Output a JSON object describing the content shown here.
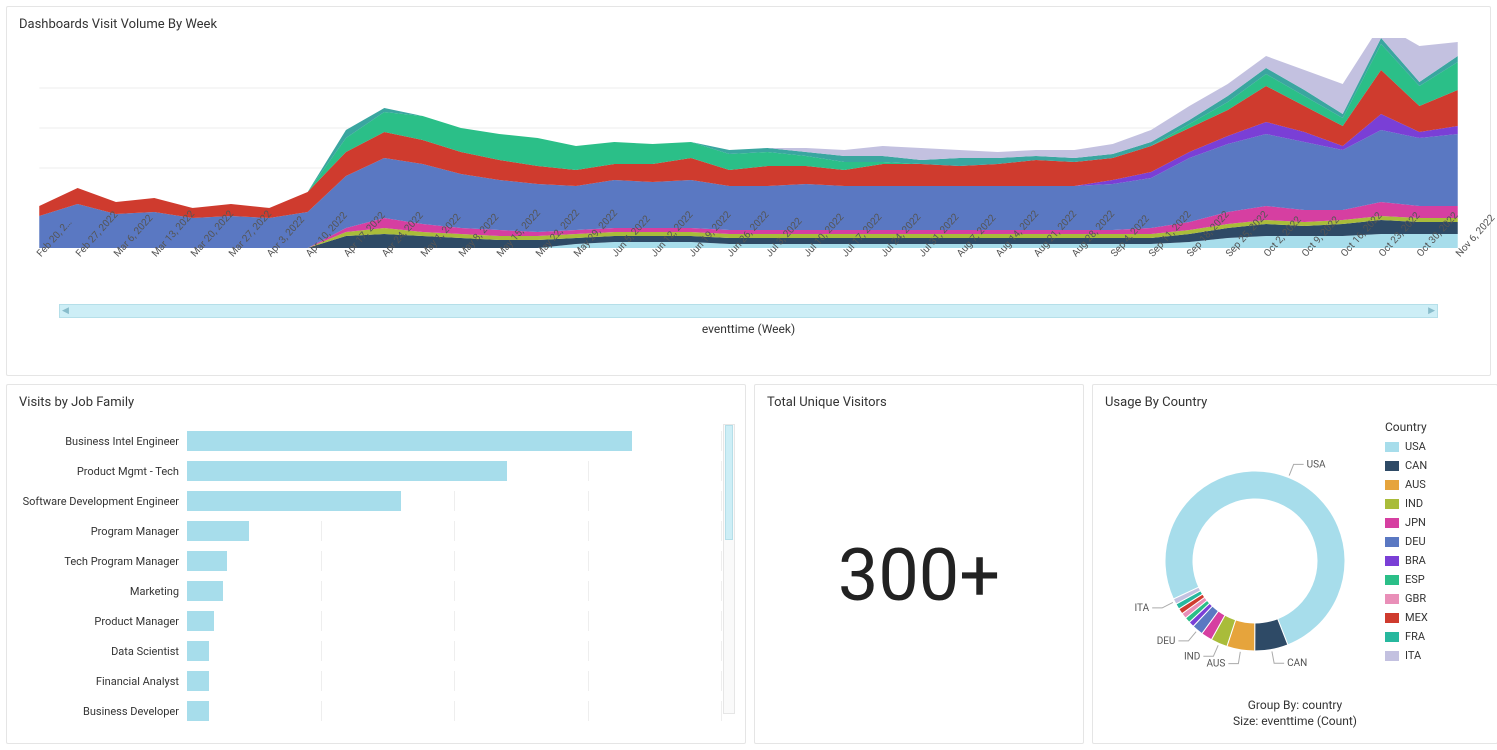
{
  "area_chart": {
    "title": "Dashboards Visit Volume By Week",
    "type": "area",
    "axis_title": "eventtime (Week)",
    "ylim": [
      0,
      100
    ],
    "grid_y": [
      20,
      40,
      60,
      80
    ],
    "grid_color": "#eeeeee",
    "background_color": "#ffffff",
    "x_labels": [
      "Feb 20, 2…",
      "Feb 27, 2022",
      "Mar 6, 2022",
      "Mar 13, 2022",
      "Mar 20, 2022",
      "Mar 27, 2022",
      "Apr 3, 2022",
      "Apr 10, 2022",
      "Apr 17, 2022",
      "Apr 24, 2022",
      "May 1, 2022",
      "May 8, 2022",
      "May 15, 2022",
      "May 22, 2022",
      "May 29, 2022",
      "Jun 5, 2022",
      "Jun 12, 2022",
      "Jun 19, 2022",
      "Jun 26, 2022",
      "Jul 3, 2022",
      "Jul 10, 2022",
      "Jul 17, 2022",
      "Jul 24, 2022",
      "Jul 31, 2022",
      "Aug 7, 2022",
      "Aug 14, 2022",
      "Aug 21, 2022",
      "Aug 28, 2022",
      "Sep 4, 2022",
      "Sep 11, 2022",
      "Sep 18, 2022",
      "Sep 25, 2022",
      "Oct 2, 2022",
      "Oct 9, 2022",
      "Oct 16, 2022",
      "Oct 23, 2022",
      "Oct 30, 2022",
      "Nov 6, 2022"
    ],
    "series": [
      {
        "name": "lightblue",
        "color": "#a7ddeb",
        "values": [
          0,
          0,
          0,
          0,
          0,
          0,
          0,
          0,
          0,
          0,
          0,
          0,
          0,
          0,
          2,
          3,
          3,
          3,
          2,
          2,
          2,
          2,
          2,
          2,
          2,
          2,
          2,
          2,
          2,
          2,
          3,
          5,
          6,
          6,
          6,
          7,
          7,
          7
        ]
      },
      {
        "name": "navy",
        "color": "#2e4a66",
        "values": [
          0,
          0,
          0,
          0,
          0,
          0,
          0,
          0,
          6,
          7,
          6,
          5,
          4,
          4,
          3,
          3,
          3,
          3,
          3,
          3,
          3,
          3,
          3,
          3,
          3,
          3,
          3,
          3,
          3,
          3,
          4,
          5,
          6,
          5,
          6,
          7,
          6,
          6
        ]
      },
      {
        "name": "oliveband",
        "color": "#a9bc3a",
        "values": [
          0,
          0,
          0,
          0,
          0,
          0,
          0,
          0,
          2,
          3,
          2,
          2,
          2,
          2,
          2,
          2,
          2,
          2,
          2,
          2,
          2,
          2,
          2,
          2,
          2,
          2,
          2,
          2,
          2,
          2,
          2,
          2,
          2,
          2,
          2,
          2,
          2,
          2
        ]
      },
      {
        "name": "magenta",
        "color": "#d63fa1",
        "values": [
          0,
          0,
          0,
          0,
          0,
          0,
          0,
          0,
          2,
          5,
          4,
          3,
          3,
          2,
          2,
          2,
          2,
          2,
          2,
          2,
          2,
          2,
          2,
          2,
          2,
          2,
          2,
          2,
          2,
          3,
          4,
          6,
          7,
          6,
          5,
          7,
          6,
          6
        ]
      },
      {
        "name": "blue",
        "color": "#5a78c2",
        "values": [
          16,
          22,
          17,
          18,
          15,
          16,
          15,
          18,
          26,
          30,
          30,
          27,
          25,
          24,
          22,
          24,
          23,
          24,
          22,
          22,
          23,
          22,
          22,
          22,
          22,
          22,
          22,
          22,
          23,
          25,
          32,
          34,
          36,
          34,
          30,
          36,
          34,
          36
        ]
      },
      {
        "name": "purple",
        "color": "#7a3fd6",
        "values": [
          0,
          0,
          0,
          0,
          0,
          0,
          0,
          0,
          0,
          0,
          0,
          0,
          0,
          0,
          0,
          0,
          0,
          0,
          0,
          0,
          0,
          0,
          0,
          0,
          0,
          0,
          0,
          0,
          2,
          3,
          3,
          4,
          6,
          5,
          2,
          8,
          3,
          4
        ]
      },
      {
        "name": "red",
        "color": "#cf3b2e",
        "values": [
          5,
          8,
          6,
          7,
          5,
          6,
          5,
          10,
          12,
          13,
          12,
          11,
          10,
          9,
          8,
          8,
          9,
          11,
          8,
          10,
          9,
          8,
          11,
          11,
          10,
          11,
          13,
          12,
          11,
          13,
          12,
          13,
          18,
          13,
          10,
          22,
          13,
          18
        ]
      },
      {
        "name": "green",
        "color": "#2bbf88",
        "values": [
          0,
          0,
          0,
          0,
          0,
          0,
          0,
          0,
          7,
          10,
          12,
          12,
          13,
          14,
          12,
          11,
          10,
          8,
          8,
          7,
          5,
          4,
          1,
          0,
          0,
          0,
          0,
          0,
          0,
          0,
          2,
          4,
          6,
          5,
          4,
          13,
          10,
          14
        ]
      },
      {
        "name": "teal",
        "color": "#3aa6a0",
        "values": [
          0,
          0,
          0,
          0,
          0,
          0,
          0,
          0,
          4,
          2,
          0,
          0,
          0,
          0,
          0,
          0,
          0,
          0,
          2,
          2,
          2,
          3,
          3,
          2,
          4,
          3,
          2,
          2,
          2,
          2,
          2,
          3,
          3,
          3,
          2,
          3,
          2,
          3
        ]
      },
      {
        "name": "lavender",
        "color": "#c3c1e0",
        "values": [
          0,
          0,
          0,
          0,
          0,
          0,
          0,
          0,
          0,
          0,
          0,
          0,
          0,
          0,
          0,
          0,
          0,
          0,
          0,
          0,
          2,
          3,
          5,
          6,
          4,
          3,
          3,
          4,
          5,
          6,
          7,
          6,
          6,
          10,
          15,
          7,
          18,
          7
        ]
      }
    ]
  },
  "bar_chart": {
    "title": "Visits by Job Family",
    "type": "bar",
    "bar_color": "#a7ddeb",
    "grid_color": "#eeeeee",
    "max": 120,
    "grid_positions_pct": [
      0,
      25,
      50,
      75,
      100
    ],
    "scroll_thumb": {
      "top_pct": 0,
      "height_pct": 40
    },
    "items": [
      {
        "label": "Business Intel Engineer",
        "value": 100
      },
      {
        "label": "Product Mgmt - Tech",
        "value": 72
      },
      {
        "label": "Software Development Engineer",
        "value": 48
      },
      {
        "label": "Program Manager",
        "value": 14
      },
      {
        "label": "Tech Program Manager",
        "value": 9
      },
      {
        "label": "Marketing",
        "value": 8
      },
      {
        "label": "Product Manager",
        "value": 6
      },
      {
        "label": "Data Scientist",
        "value": 5
      },
      {
        "label": "Financial Analyst",
        "value": 5
      },
      {
        "label": "Business Developer",
        "value": 5
      }
    ]
  },
  "kpi": {
    "title": "Total Unique Visitors",
    "value": "300+",
    "value_fontsize": 72,
    "value_color": "#222222"
  },
  "donut": {
    "title": "Usage By Country",
    "type": "pie",
    "legend_title": "Country",
    "footer_line1": "Group By: country",
    "footer_line2": "Size: eventtime (Count)",
    "inner_radius": 62,
    "outer_radius": 90,
    "callouts": [
      "USA",
      "CAN",
      "AUS",
      "IND",
      "DEU",
      "ITA"
    ],
    "slices": [
      {
        "label": "USA",
        "value": 76,
        "color": "#a7ddeb"
      },
      {
        "label": "CAN",
        "value": 6,
        "color": "#2e4a66"
      },
      {
        "label": "AUS",
        "value": 5,
        "color": "#e6a43c"
      },
      {
        "label": "IND",
        "value": 3,
        "color": "#a9bc3a"
      },
      {
        "label": "JPN",
        "value": 2,
        "color": "#d63fa1"
      },
      {
        "label": "DEU",
        "value": 2,
        "color": "#5a78c2"
      },
      {
        "label": "BRA",
        "value": 1,
        "color": "#7a3fd6"
      },
      {
        "label": "ESP",
        "value": 1,
        "color": "#2bbf88"
      },
      {
        "label": "GBR",
        "value": 1,
        "color": "#e98fb8"
      },
      {
        "label": "MEX",
        "value": 1,
        "color": "#cf3b2e"
      },
      {
        "label": "FRA",
        "value": 1,
        "color": "#27b89e"
      },
      {
        "label": "ITA",
        "value": 1,
        "color": "#c3c1e0"
      }
    ]
  }
}
